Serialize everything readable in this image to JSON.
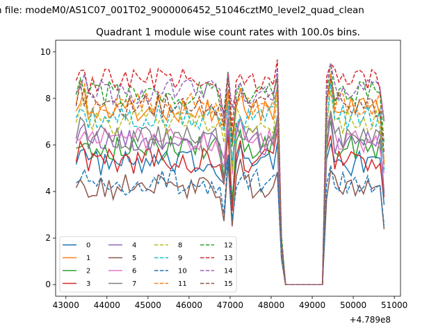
{
  "suptitle": "n file: modeM0/AS1C07_001T02_9000006452_51046cztM0_level2_quad_clean",
  "chart_data": {
    "type": "line",
    "title": "Quadrant 1 module wise count rates with 100.0s bins.",
    "xlabel": "",
    "ylabel": "",
    "x_offset_label": "+4.789e8",
    "xlim": [
      42750,
      51150
    ],
    "ylim": [
      -0.5,
      10.5
    ],
    "xticks": [
      43000,
      44000,
      45000,
      46000,
      47000,
      48000,
      49000,
      50000,
      51000
    ],
    "yticks": [
      0,
      2,
      4,
      6,
      8,
      10
    ],
    "grid": false,
    "legend_placement": "lower-left",
    "x": [
      43250,
      43350,
      43450,
      43550,
      43650,
      43750,
      43850,
      43950,
      44050,
      44150,
      44250,
      44350,
      44450,
      44550,
      44650,
      44750,
      44850,
      44950,
      45050,
      45150,
      45250,
      45350,
      45450,
      45550,
      45650,
      45750,
      45850,
      45950,
      46050,
      46150,
      46250,
      46350,
      46450,
      46550,
      46650,
      46750,
      46850,
      46950,
      47050,
      47150,
      47250,
      47350,
      47450,
      47550,
      47650,
      47750,
      47850,
      47950,
      48050,
      48150,
      48250,
      48350,
      48450,
      48550,
      48650,
      48750,
      48850,
      48950,
      49050,
      49150,
      49250,
      49350,
      49450,
      49550,
      49650,
      49750,
      49850,
      49950,
      50050,
      50150,
      50250,
      50350,
      50450,
      50550,
      50650,
      50750
    ],
    "gap": {
      "zero_from": 48350,
      "zero_to": 49250,
      "dip_at": 48250
    },
    "series": [
      {
        "name": "0",
        "color": "#1f77b4",
        "dash": "solid",
        "base": 5.2
      },
      {
        "name": "1",
        "color": "#ff7f0e",
        "dash": "solid",
        "base": 7.5
      },
      {
        "name": "2",
        "color": "#2ca02c",
        "dash": "solid",
        "base": 5.9
      },
      {
        "name": "3",
        "color": "#d62728",
        "dash": "solid",
        "base": 5.3
      },
      {
        "name": "4",
        "color": "#9467bd",
        "dash": "solid",
        "base": 6.1
      },
      {
        "name": "5",
        "color": "#8c564b",
        "dash": "solid",
        "base": 4.2
      },
      {
        "name": "6",
        "color": "#e377c2",
        "dash": "solid",
        "base": 6.2
      },
      {
        "name": "7",
        "color": "#7f7f7f",
        "dash": "solid",
        "base": 6.3
      },
      {
        "name": "8",
        "color": "#bcbd22",
        "dash": "dashed",
        "base": 7.0
      },
      {
        "name": "9",
        "color": "#17becf",
        "dash": "dashed",
        "base": 7.2
      },
      {
        "name": "10",
        "color": "#1f77b4",
        "dash": "dashed",
        "base": 4.4
      },
      {
        "name": "11",
        "color": "#ff7f0e",
        "dash": "dashed",
        "base": 7.8
      },
      {
        "name": "12",
        "color": "#2ca02c",
        "dash": "dashed",
        "base": 8.2
      },
      {
        "name": "13",
        "color": "#d62728",
        "dash": "dashed",
        "base": 8.8
      },
      {
        "name": "14",
        "color": "#9467bd",
        "dash": "dashed",
        "base": 8.3
      },
      {
        "name": "15",
        "color": "#8c564b",
        "dash": "dashed",
        "base": 7.7
      }
    ]
  }
}
